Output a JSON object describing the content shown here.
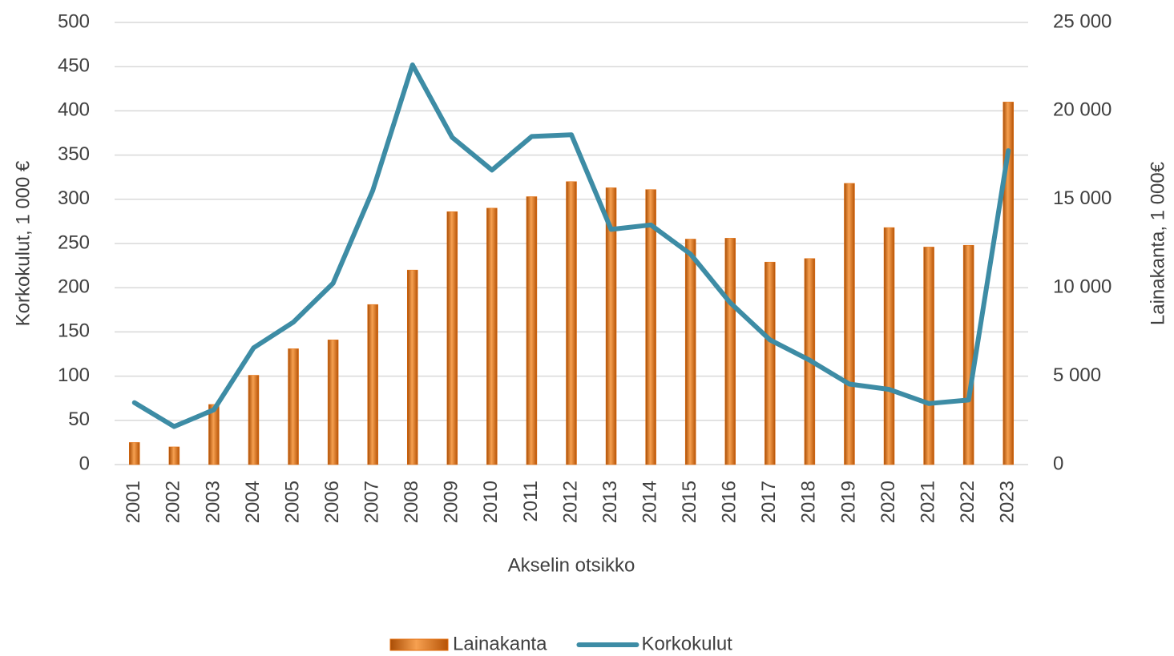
{
  "chart_data": {
    "type": "bar-line",
    "x_label": "Akselin otsikko",
    "y_label": "Korkokulut, 1 000 €",
    "y2_label": "Lainakanta, 1 000€",
    "categories": [
      "2001",
      "2002",
      "2003",
      "2004",
      "2005",
      "2006",
      "2007",
      "2008",
      "2009",
      "2010",
      "2011",
      "2012",
      "2013",
      "2014",
      "2015",
      "2016",
      "2017",
      "2018",
      "2019",
      "2020",
      "2021",
      "2022",
      "2023"
    ],
    "series": [
      {
        "name": "Lainakanta",
        "type": "bar",
        "axis": "y2",
        "color": "#e46c0a",
        "values": [
          1250,
          1000,
          3400,
          5050,
          6550,
          7050,
          9050,
          11000,
          14300,
          14500,
          15150,
          16000,
          15650,
          15550,
          12750,
          12800,
          11450,
          11650,
          15900,
          13400,
          12300,
          12400,
          20500
        ]
      },
      {
        "name": "Korkokulut",
        "type": "line",
        "axis": "y",
        "color": "#3d8ca5",
        "values": [
          70,
          43,
          62,
          132,
          161,
          205,
          310,
          452,
          370,
          333,
          371,
          373,
          266,
          271,
          238,
          183,
          141,
          118,
          91,
          85,
          69,
          73,
          355
        ]
      }
    ],
    "ylim": [
      0,
      500
    ],
    "yticks": [
      0,
      50,
      100,
      150,
      200,
      250,
      300,
      350,
      400,
      450,
      500
    ],
    "y2lim": [
      0,
      25000
    ],
    "y2ticks": [
      0,
      {
        "value": 5000,
        "label": "5 000"
      },
      {
        "value": 10000,
        "label": "10 000"
      },
      {
        "value": 15000,
        "label": "15 000"
      },
      {
        "value": 20000,
        "label": "20 000"
      },
      {
        "value": 25000,
        "label": "25 000"
      }
    ],
    "grid": true,
    "legend": "bottom"
  }
}
